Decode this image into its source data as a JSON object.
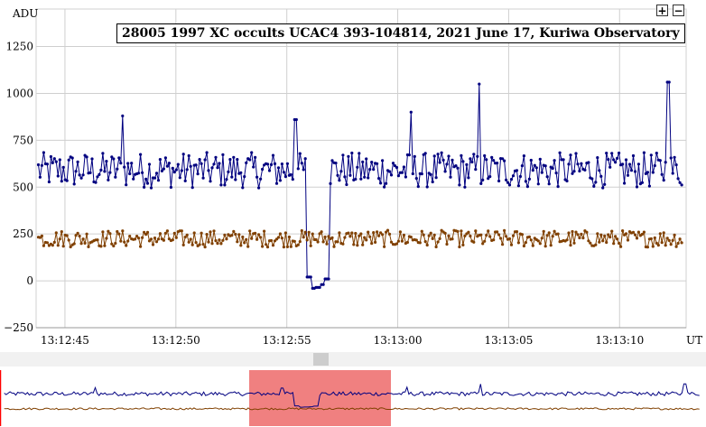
{
  "chart_data": {
    "type": "line",
    "title": "28005 1997 XC occults UCAC4 393-104814, 2021 June 17, Kuriwa Observatory",
    "ylabel": "ADU",
    "xlabel": "UT",
    "ylim": [
      -250,
      1450
    ],
    "yticks": [
      "1250",
      "1000",
      "750",
      "500",
      "250",
      "0",
      "−250"
    ],
    "ytick_values": [
      1250,
      1000,
      750,
      500,
      250,
      0,
      -250
    ],
    "xticks": [
      "13:12:45",
      "13:12:50",
      "13:12:55",
      "13:13:00",
      "13:13:05",
      "13:13:10"
    ],
    "xtick_values": [
      0,
      5,
      10,
      15,
      20,
      25
    ],
    "grid": true,
    "series": [
      {
        "color": "#000080",
        "baseline": 590,
        "noise": 95,
        "events": [
          {
            "x": 11.0,
            "y": 20
          },
          {
            "x": 11.2,
            "y": -40
          },
          {
            "x": 11.4,
            "y": -35
          },
          {
            "x": 11.6,
            "y": -20
          },
          {
            "x": 11.8,
            "y": 10
          }
        ],
        "peaks": [
          {
            "x": 18.7,
            "y": 1050
          },
          {
            "x": 27.2,
            "y": 1060
          },
          {
            "x": 2.6,
            "y": 880
          },
          {
            "x": 10.4,
            "y": 860
          },
          {
            "x": 15.6,
            "y": 900
          }
        ]
      },
      {
        "color": "#804000",
        "baseline": 225,
        "noise": 45,
        "events": [],
        "peaks": []
      }
    ],
    "selection_color": "#f08080"
  },
  "zoom": {
    "plus": "+",
    "minus": "−"
  }
}
